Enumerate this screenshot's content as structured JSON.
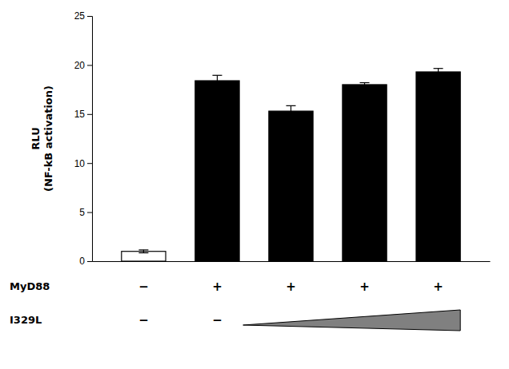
{
  "chart_data": {
    "type": "bar",
    "ylabel": [
      "RLU",
      "(NF-kB activation)"
    ],
    "values": [
      1.0,
      18.4,
      15.3,
      18.0,
      19.3
    ],
    "errors": [
      0.15,
      0.55,
      0.55,
      0.2,
      0.35
    ],
    "colors": [
      "white",
      "black",
      "black",
      "black",
      "black"
    ],
    "ylim": [
      0,
      25
    ],
    "yticks": [
      0,
      5,
      10,
      15,
      20,
      25
    ],
    "tick_labels": "y",
    "grid": false,
    "rows": [
      {
        "name": "MyD88",
        "signs": [
          "−",
          "+",
          "+",
          "+",
          "+"
        ]
      },
      {
        "name": "I329L",
        "signs": [
          "−",
          "−",
          null,
          null,
          null
        ]
      }
    ]
  }
}
